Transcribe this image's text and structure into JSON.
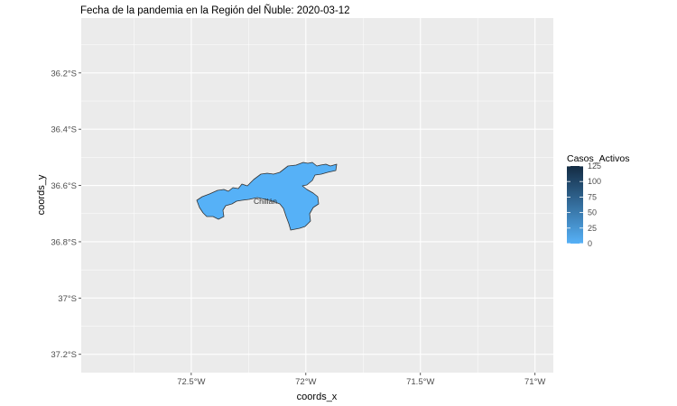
{
  "chart_data": {
    "type": "choropleth_map",
    "title": "Fecha de la pandemia en la Región del Ñuble: 2020-03-12",
    "xlabel": "coords_x",
    "ylabel": "coords_y",
    "x_ticks": [
      "72.5°W",
      "72°W",
      "71.5°W",
      "71°W"
    ],
    "x_tick_values": [
      -72.5,
      -72.0,
      -71.5,
      -71.0
    ],
    "y_ticks": [
      "36.2°S",
      "36.4°S",
      "36.6°S",
      "36.8°S",
      "37°S",
      "37.2°S"
    ],
    "y_tick_values": [
      -36.2,
      -36.4,
      -36.6,
      -36.8,
      -37.0,
      -37.2
    ],
    "xlim": [
      -72.98,
      -70.92
    ],
    "ylim": [
      -37.265,
      -36.005
    ],
    "grid": true,
    "legend": {
      "title": "Casos_Activos",
      "position": "right",
      "labels": [
        "125",
        "100",
        "75",
        "50",
        "25",
        "0"
      ],
      "values": [
        125,
        100,
        75,
        50,
        25,
        0
      ],
      "low_color": "#56B1F7",
      "high_color": "#132B43"
    },
    "regions": [
      {
        "name": "Chillán",
        "casos_activos": 0,
        "fill": "#56B1F7"
      }
    ]
  },
  "colors": {
    "panel_background": "#EBEBEB",
    "grid_major": "#FFFFFF",
    "region_border": "#333333"
  }
}
